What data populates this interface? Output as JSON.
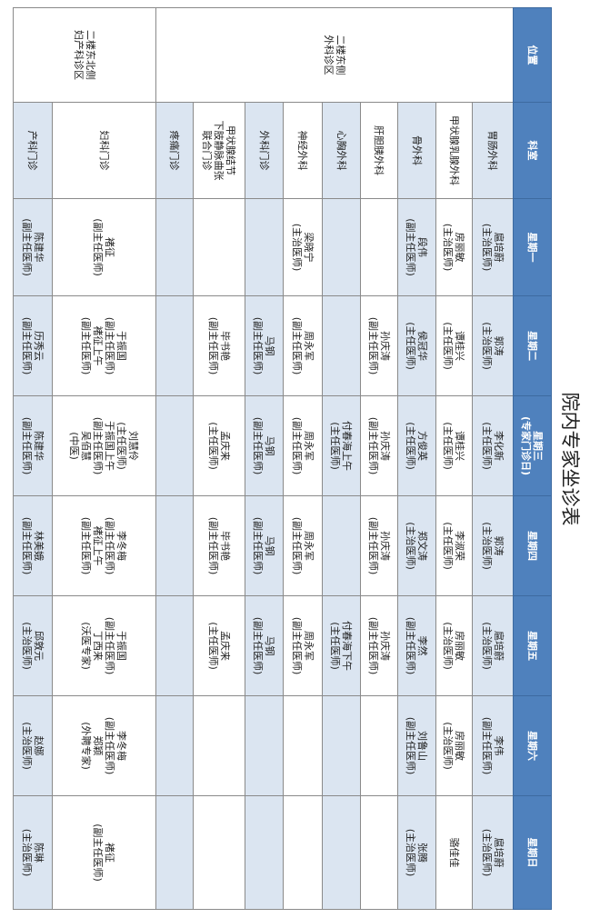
{
  "title": "院内专家坐诊表",
  "colors": {
    "header_bg": "#4f81bd",
    "header_text": "#ffffff",
    "stripe": "#dbe5f1"
  },
  "headers": [
    "位置",
    "科室",
    "星期一",
    "星期二",
    "星期三\n(专家门诊日)",
    "星期四",
    "星期五",
    "星期六",
    "星期日"
  ],
  "positions": [
    {
      "label": "二楼东侧\n外科诊区"
    },
    {
      "label": "二楼东北侧\n妇产科诊区"
    }
  ],
  "rows": [
    {
      "dept": "胃肠外科",
      "cells": [
        [
          "扈培蔚",
          "(主治医师)"
        ],
        [
          "郭涛",
          "(主治医师)"
        ],
        [
          "李化新",
          "(主任医师)"
        ],
        [
          "郭涛",
          "(主治医师)"
        ],
        [
          "扈培蔚",
          "(主治医师)"
        ],
        [
          "李伟",
          "(副主任医师)"
        ],
        [
          "扈培蔚",
          "(主治医师)"
        ]
      ]
    },
    {
      "dept": "甲状腺乳腺外科",
      "cells": [
        [
          "房丽敏",
          "(主治医师)"
        ],
        [
          "谭桂兴",
          "(主任医师)"
        ],
        [
          "谭桂兴",
          "(主任医师)"
        ],
        [
          "李淑荣",
          "(主任医师)"
        ],
        [
          "房丽敏",
          "(主治医师)"
        ],
        [
          "房丽敏",
          "(主治医师)"
        ],
        [
          "骆佳佳"
        ]
      ]
    },
    {
      "dept": "骨外科",
      "cells": [
        [
          "段伟",
          "(副主任医师)"
        ],
        [
          "侯冠华",
          "(主任医师)"
        ],
        [
          "方俊英",
          "(主任医师)"
        ],
        [
          "郑文涛",
          "(主治医师)"
        ],
        [
          "李然",
          "(副主任医师)"
        ],
        [
          "刘鲁山",
          "(副主任医师)"
        ],
        [
          "张腾",
          "(主治医师)"
        ]
      ]
    },
    {
      "dept": "肝胆胰外科",
      "cells": [
        [],
        [
          "孙庆涛",
          "(副主任医师)"
        ],
        [
          "孙庆涛",
          "(副主任医师)"
        ],
        [
          "孙庆涛",
          "(副主任医师)"
        ],
        [
          "孙庆涛",
          "(副主任医师)"
        ],
        [],
        []
      ]
    },
    {
      "dept": "心胸外科",
      "cells": [
        [],
        [],
        [
          "付春海上午",
          "(主任医师)"
        ],
        [],
        [
          "付春海下午",
          "(主任医师)"
        ],
        [],
        []
      ]
    },
    {
      "dept": "神经外科",
      "cells": [
        [
          "梁晓宁",
          "(主治医师)"
        ],
        [
          "周永军",
          "(副主任医师)"
        ],
        [
          "周永军",
          "(副主任医师)"
        ],
        [
          "周永军",
          "(副主任医师)"
        ],
        [
          "周永军",
          "(副主任医师)"
        ],
        [],
        []
      ]
    },
    {
      "dept": "外科门诊",
      "cells": [
        [],
        [
          "马钢",
          "(副主任医师)"
        ],
        [
          "马钢",
          "(副主任医师)"
        ],
        [
          "马钢",
          "(副主任医师)"
        ],
        [
          "马钢",
          "(副主任医师)"
        ],
        [],
        []
      ]
    },
    {
      "dept": "甲状腺结节\n下肢静脉曲张\n联合门诊",
      "cells": [
        [],
        [
          "毕书艳",
          "(副主任医师)"
        ],
        [
          "孟庆来",
          "(主任医师)"
        ],
        [
          "毕书艳",
          "(副主任医师)"
        ],
        [
          "孟庆来",
          "(主任医师)"
        ],
        [],
        []
      ]
    },
    {
      "dept": "疼痛门诊",
      "cells": [
        [],
        [],
        [],
        [],
        [],
        [],
        []
      ]
    },
    {
      "dept": "妇科门诊",
      "cells": [
        [
          "褚征",
          "(副主任医师)"
        ],
        [
          "于振国",
          "(副主任医师)",
          "褚征上午",
          "(副主任医师)"
        ],
        [
          "刘慧伶",
          "(主任医师)",
          "于振国上午",
          "(副主任医师)",
          "吴佰慧",
          "(中医)"
        ],
        [
          "李冬梅",
          "(副主任医师)",
          "褚征上午",
          "(副主任医师)"
        ],
        [
          "于振国",
          "(副主任医师)",
          "丁西来",
          "(沃医专家)"
        ],
        [
          "李冬梅",
          "(副主任医师)",
          "郑颖",
          "(外聘专家)"
        ],
        [
          "褚征",
          "(副主任医师)"
        ]
      ]
    },
    {
      "dept": "产科门诊",
      "cells": [
        [
          "陈建华",
          "(副主任医师)"
        ],
        [
          "历秀云",
          "(副主任医师)"
        ],
        [
          "陈建华",
          "(副主任医师)"
        ],
        [
          "林美娥",
          "(副主任医师)"
        ],
        [
          "邱敦元",
          "(主治医师)"
        ],
        [
          "赵娜",
          "(主治医师)"
        ],
        [
          "陈琳",
          "(主治医师)"
        ]
      ]
    }
  ]
}
